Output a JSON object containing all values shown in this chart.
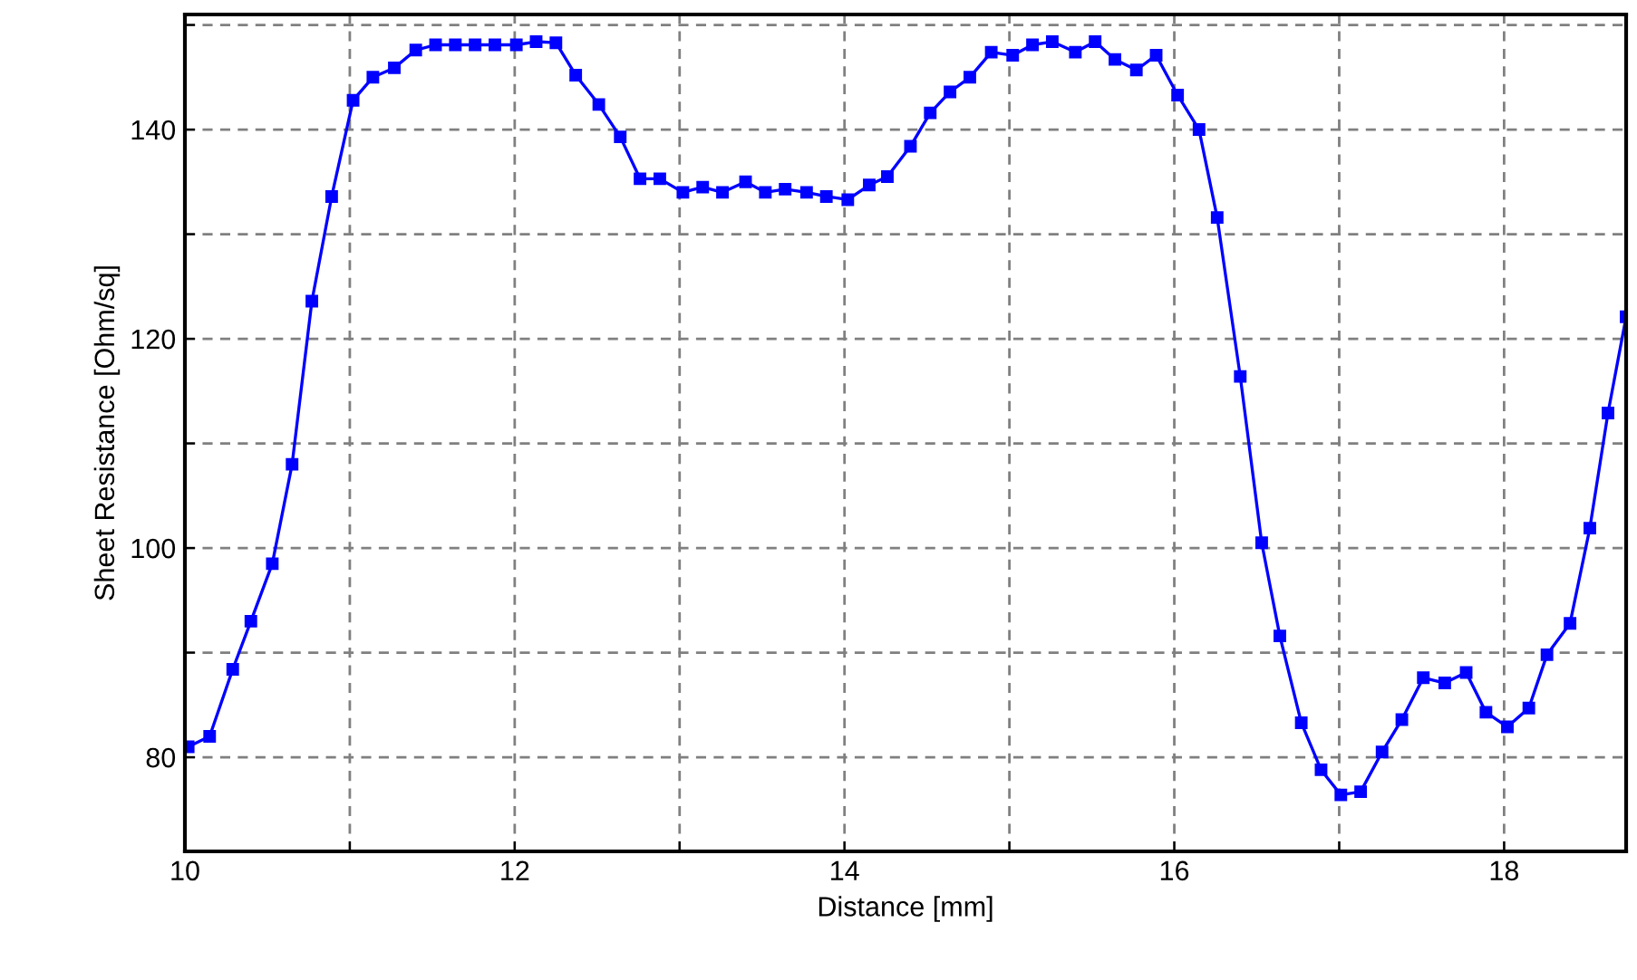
{
  "chart_data": {
    "type": "line",
    "xlabel": "Distance [mm]",
    "ylabel": "Sheet Resistance [Ohm/sq]",
    "xlim": [
      10,
      18.74
    ],
    "ylim": [
      71,
      151
    ],
    "xticks": [
      10,
      {
        "value": 11,
        "label": null
      },
      12,
      {
        "value": 13,
        "label": null
      },
      14,
      {
        "value": 15,
        "label": null
      },
      16,
      {
        "value": 17,
        "label": null
      },
      18
    ],
    "yticks": [
      80,
      {
        "value": 90,
        "label": null
      },
      100,
      {
        "value": 110,
        "label": null
      },
      120,
      {
        "value": 130,
        "label": null
      },
      140,
      {
        "value": 150,
        "label": null
      }
    ],
    "grid": true,
    "marker": "square",
    "line_style": "solid",
    "series": [
      {
        "color": "#0000ff",
        "x": [
          10.02,
          10.15,
          10.29,
          10.4,
          10.53,
          10.65,
          10.77,
          10.89,
          11.02,
          11.14,
          11.27,
          11.4,
          11.52,
          11.64,
          11.76,
          11.88,
          12.01,
          12.13,
          12.25,
          12.37,
          12.51,
          12.64,
          12.76,
          12.88,
          13.02,
          13.14,
          13.26,
          13.4,
          13.52,
          13.64,
          13.77,
          13.89,
          14.02,
          14.15,
          14.26,
          14.4,
          14.52,
          14.64,
          14.76,
          14.89,
          15.02,
          15.14,
          15.26,
          15.4,
          15.52,
          15.64,
          15.77,
          15.89,
          16.02,
          16.15,
          16.26,
          16.4,
          16.53,
          16.64,
          16.77,
          16.89,
          17.01,
          17.13,
          17.26,
          17.38,
          17.51,
          17.64,
          17.77,
          17.89,
          18.02,
          18.15,
          18.26,
          18.4,
          18.52,
          18.63,
          18.74
        ],
        "values": [
          81,
          82,
          88.4,
          93,
          98.5,
          108,
          123.6,
          133.6,
          142.8,
          145,
          145.9,
          147.6,
          148.1,
          148.1,
          148.1,
          148.1,
          148.1,
          148.4,
          148.3,
          145.2,
          142.4,
          139.3,
          135.3,
          135.3,
          134,
          134.5,
          134,
          135,
          134,
          134.3,
          134,
          133.6,
          133.3,
          134.7,
          135.5,
          138.4,
          141.6,
          143.6,
          145,
          147.4,
          147.1,
          148.1,
          148.4,
          147.4,
          148.4,
          146.7,
          145.7,
          147.1,
          143.3,
          140,
          131.6,
          116.4,
          100.5,
          91.6,
          83.3,
          78.8,
          76.4,
          76.7,
          80.5,
          83.6,
          87.6,
          87.1,
          88.1,
          84.3,
          82.9,
          84.7,
          89.8,
          92.8,
          101.9,
          112.9,
          122.1
        ]
      }
    ]
  }
}
